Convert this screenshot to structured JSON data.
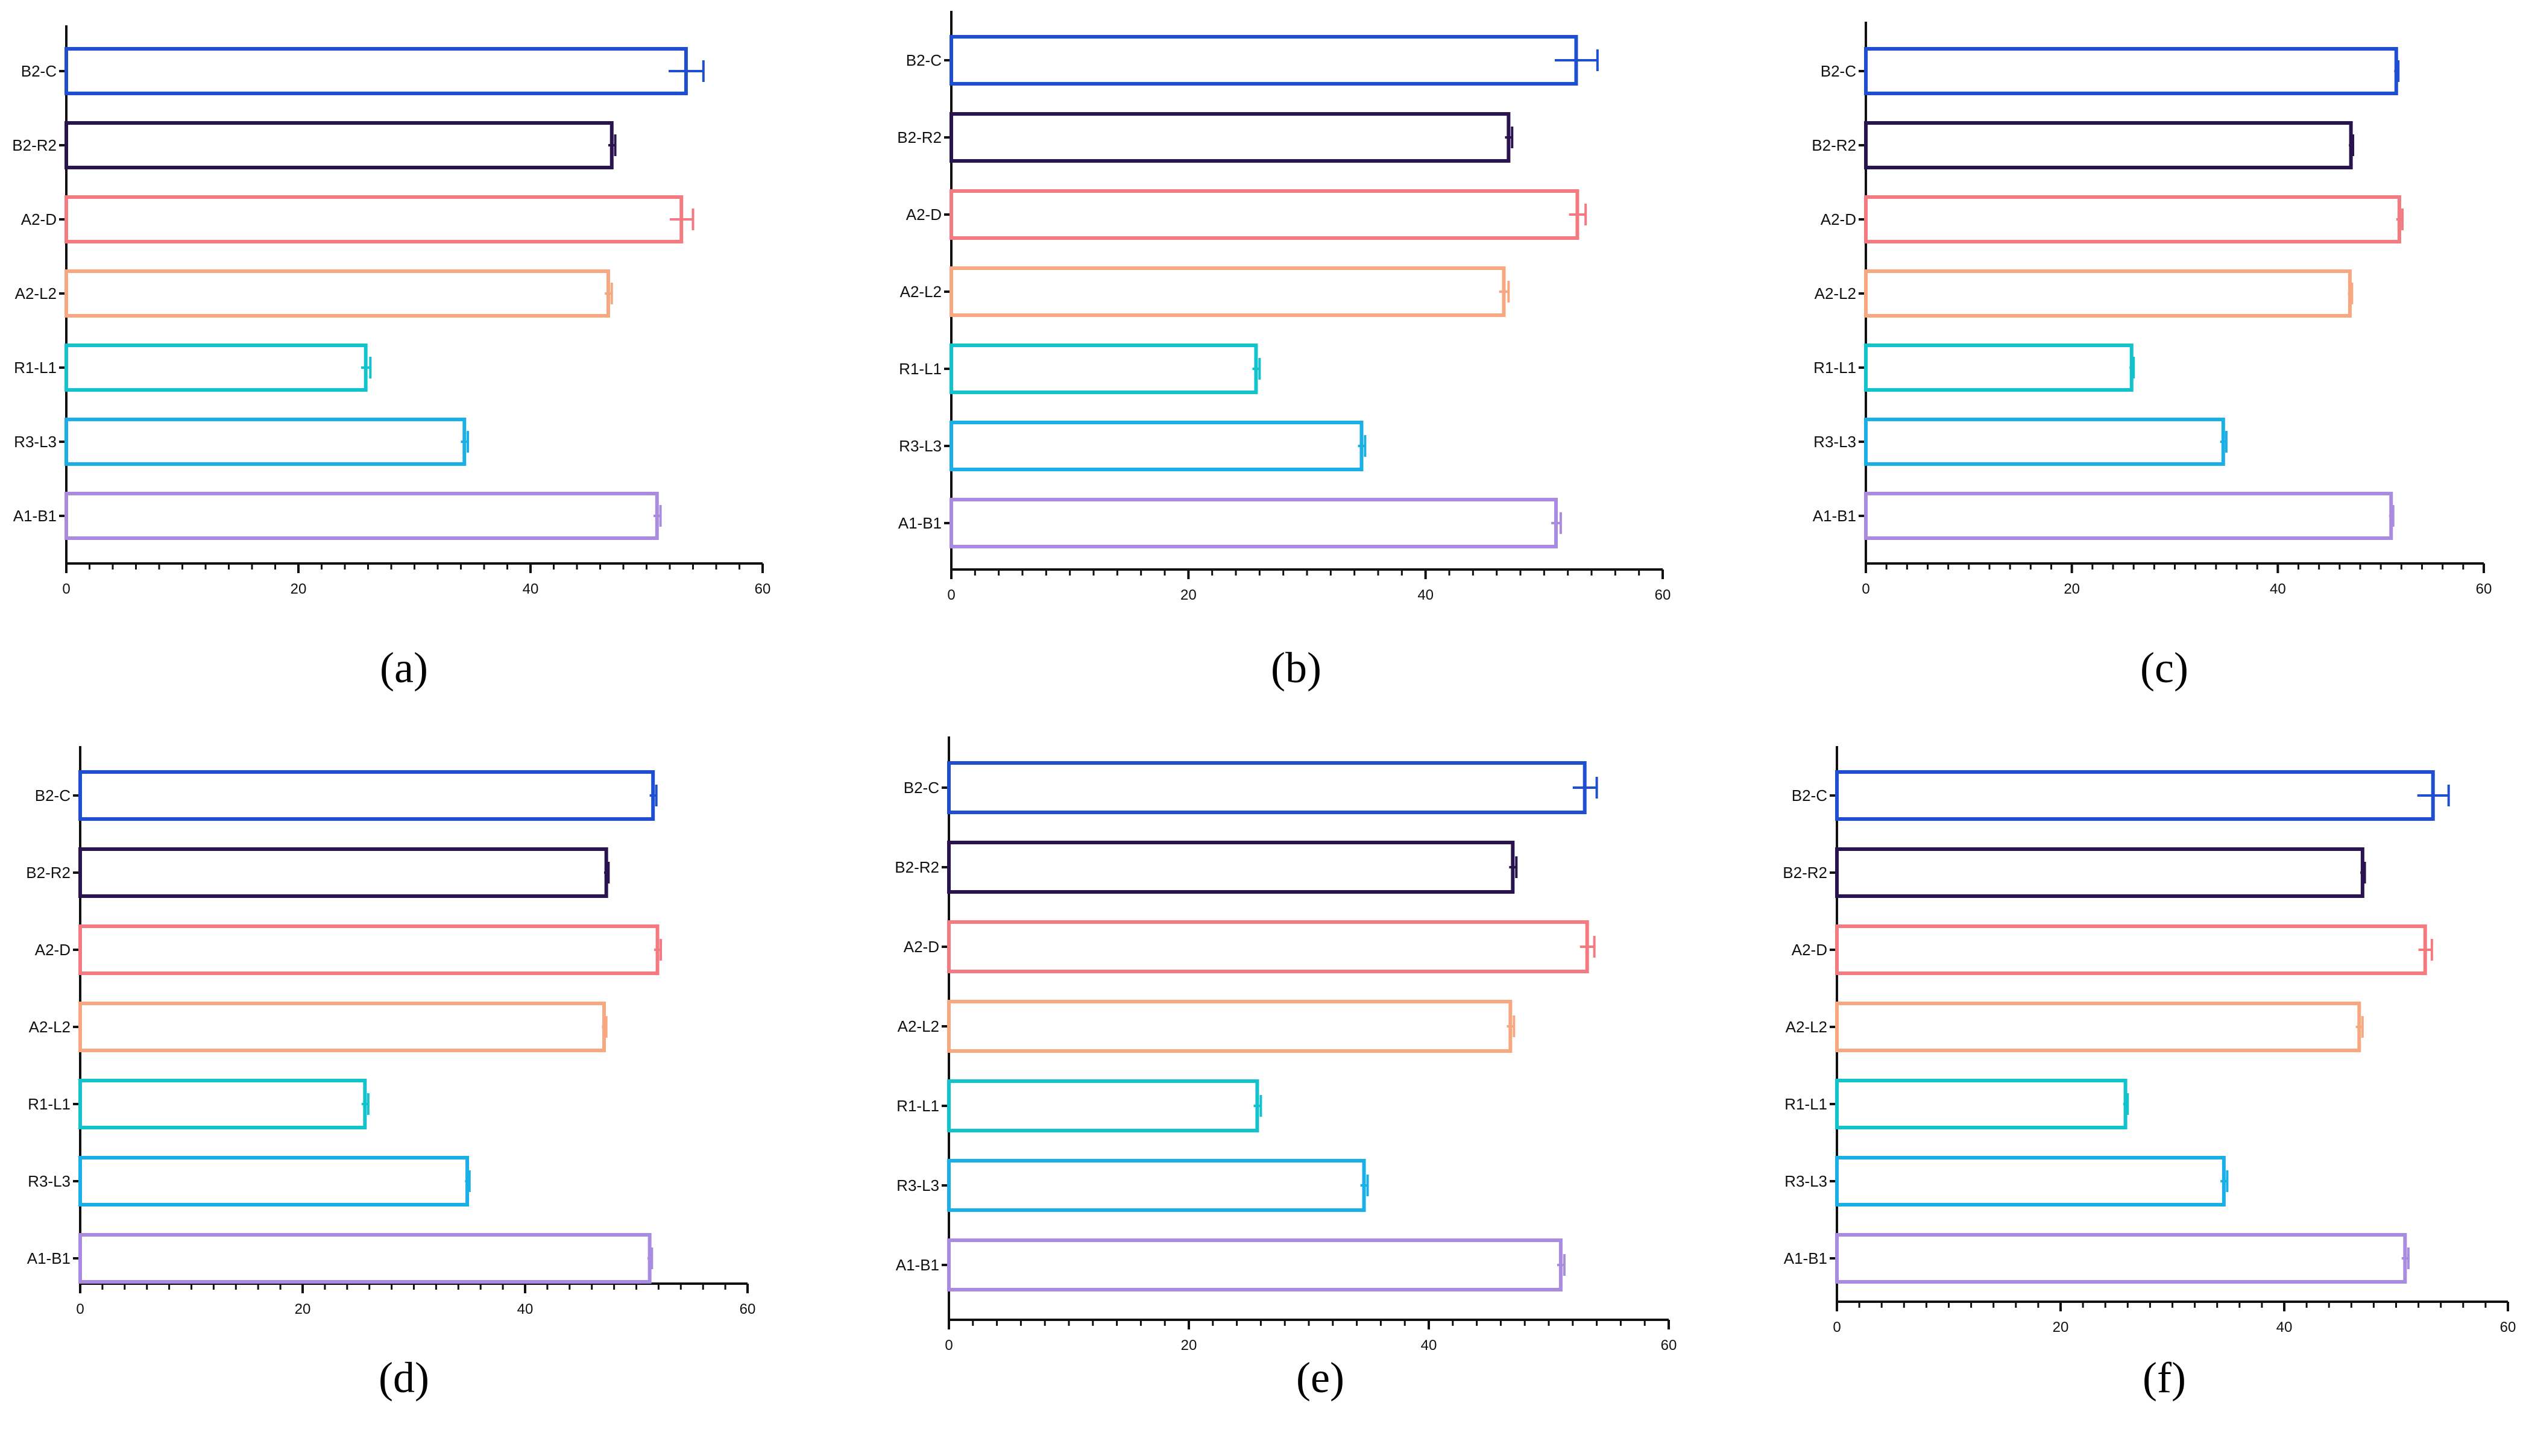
{
  "figure": {
    "panels": [
      "(a)",
      "(b)",
      "(c)",
      "(d)",
      "(e)",
      "(f)"
    ]
  },
  "colors": {
    "B2-C": "#1f4fd1",
    "B2-R2": "#2a1450",
    "A2-D": "#f27a80",
    "A2-L2": "#f7a880",
    "R1-L1": "#12c2cc",
    "R3-L3": "#1ab0e6",
    "A1-B1": "#a98be0",
    "axis": "#111111"
  },
  "chart_data": [
    {
      "panel": "(a)",
      "type": "bar",
      "orientation": "horizontal",
      "categories": [
        "B2-C",
        "B2-R2",
        "A2-D",
        "A2-L2",
        "R1-L1",
        "R3-L3",
        "A1-B1"
      ],
      "values": [
        53.4,
        47.0,
        53.0,
        46.7,
        25.8,
        34.3,
        50.9
      ],
      "errors": [
        1.5,
        0.3,
        1.0,
        0.3,
        0.4,
        0.3,
        0.3
      ],
      "xlim": [
        0,
        60
      ],
      "xticks": [
        "0",
        "20",
        "40",
        "60"
      ],
      "xlabel": "",
      "ylabel": "",
      "title": ""
    },
    {
      "panel": "(b)",
      "type": "bar",
      "orientation": "horizontal",
      "categories": [
        "B2-C",
        "B2-R2",
        "A2-D",
        "A2-L2",
        "R1-L1",
        "R3-L3",
        "A1-B1"
      ],
      "values": [
        52.7,
        47.0,
        52.8,
        46.6,
        25.7,
        34.6,
        51.0
      ],
      "errors": [
        1.8,
        0.3,
        0.7,
        0.4,
        0.3,
        0.3,
        0.4
      ],
      "xlim": [
        0,
        60
      ],
      "xticks": [
        "0",
        "20",
        "40",
        "60"
      ],
      "xlabel": "",
      "ylabel": "",
      "title": ""
    },
    {
      "panel": "(c)",
      "type": "bar",
      "orientation": "horizontal",
      "categories": [
        "B2-C",
        "B2-R2",
        "A2-D",
        "A2-L2",
        "R1-L1",
        "R3-L3",
        "A1-B1"
      ],
      "values": [
        51.5,
        47.1,
        51.8,
        47.0,
        25.8,
        34.7,
        51.0
      ],
      "errors": [
        0.2,
        0.2,
        0.3,
        0.2,
        0.2,
        0.3,
        0.2
      ],
      "xlim": [
        0,
        60
      ],
      "xticks": [
        "0",
        "20",
        "40",
        "60"
      ],
      "xlabel": "",
      "ylabel": "",
      "title": ""
    },
    {
      "panel": "(d)",
      "type": "bar",
      "orientation": "horizontal",
      "categories": [
        "B2-C",
        "B2-R2",
        "A2-D",
        "A2-L2",
        "R1-L1",
        "R3-L3",
        "A1-B1"
      ],
      "values": [
        51.5,
        47.3,
        51.9,
        47.1,
        25.6,
        34.8,
        51.2
      ],
      "errors": [
        0.3,
        0.2,
        0.3,
        0.2,
        0.3,
        0.2,
        0.2
      ],
      "xlim": [
        0,
        60
      ],
      "xticks": [
        "0",
        "20",
        "40",
        "60"
      ],
      "xlabel": "",
      "ylabel": "",
      "title": ""
    },
    {
      "panel": "(e)",
      "type": "bar",
      "orientation": "horizontal",
      "categories": [
        "B2-C",
        "B2-R2",
        "A2-D",
        "A2-L2",
        "R1-L1",
        "R3-L3",
        "A1-B1"
      ],
      "values": [
        53.0,
        47.0,
        53.2,
        46.8,
        25.7,
        34.6,
        51.0
      ],
      "errors": [
        1.0,
        0.3,
        0.6,
        0.3,
        0.3,
        0.3,
        0.3
      ],
      "xlim": [
        0,
        60
      ],
      "xticks": [
        "0",
        "20",
        "40",
        "60"
      ],
      "xlabel": "",
      "ylabel": "",
      "title": ""
    },
    {
      "panel": "(f)",
      "type": "bar",
      "orientation": "horizontal",
      "categories": [
        "B2-C",
        "B2-R2",
        "A2-D",
        "A2-L2",
        "R1-L1",
        "R3-L3",
        "A1-B1"
      ],
      "values": [
        53.3,
        47.0,
        52.6,
        46.7,
        25.8,
        34.6,
        50.8
      ],
      "errors": [
        1.4,
        0.2,
        0.6,
        0.3,
        0.2,
        0.3,
        0.3
      ],
      "xlim": [
        0,
        60
      ],
      "xticks": [
        "0",
        "20",
        "40",
        "60"
      ],
      "xlabel": "",
      "ylabel": "",
      "title": ""
    }
  ]
}
